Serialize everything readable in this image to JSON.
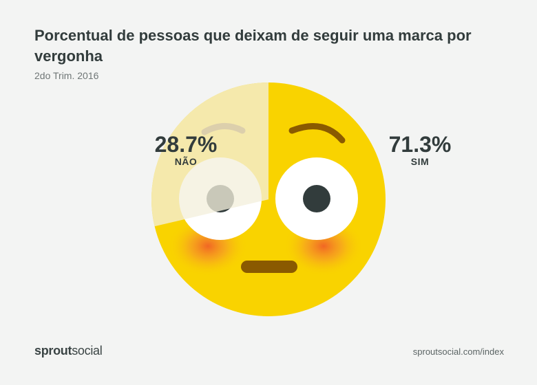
{
  "header": {
    "title": "Porcentual de pessoas que deixam de seguir uma marca por vergonha",
    "subtitle": "2do Trim. 2016"
  },
  "chart_data": {
    "type": "pie",
    "title": "Porcentual de pessoas que deixam de seguir uma marca por vergonha",
    "subtitle": "2do Trim. 2016",
    "slices": [
      {
        "label": "SIM",
        "value": 71.3,
        "display": "71.3%",
        "color": "#f9d300"
      },
      {
        "label": "NÃO",
        "value": 28.7,
        "display": "28.7%",
        "color": "#f4f0dc"
      }
    ]
  },
  "footer": {
    "brand_bold": "sprout",
    "brand_regular": "social",
    "url": "sproutsocial.com/index"
  }
}
